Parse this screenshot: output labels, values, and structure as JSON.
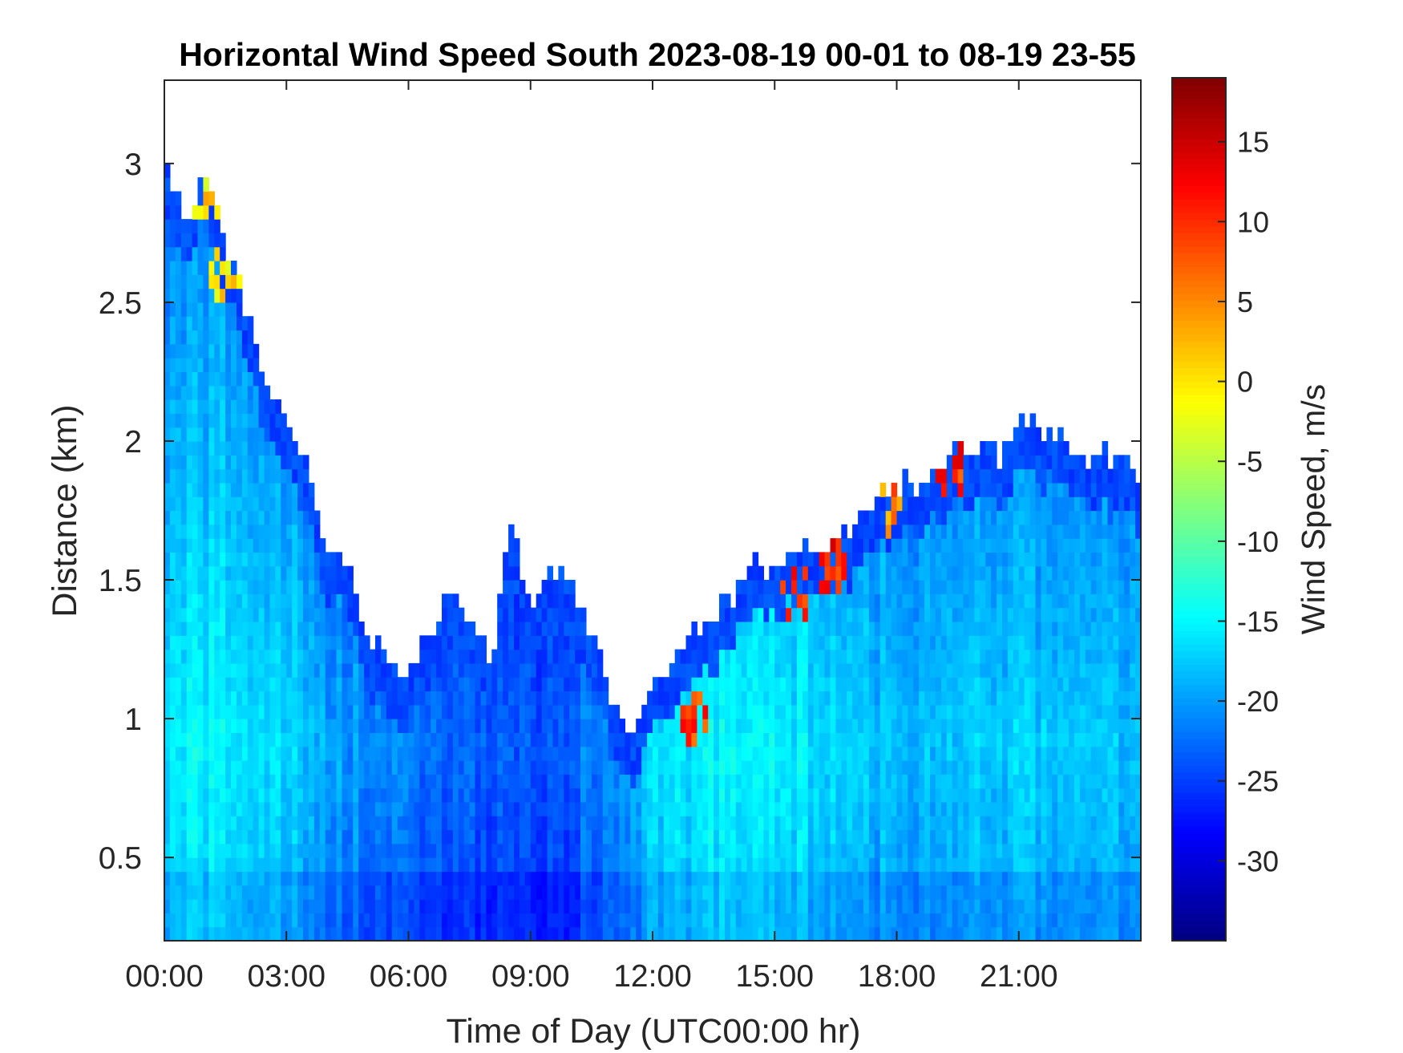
{
  "chart_data": {
    "type": "heatmap",
    "title": "Horizontal Wind Speed South 2023-08-19 00-01 to 08-19 23-55",
    "xlabel": "Time of Day (UTC00:00 hr)",
    "ylabel": "Distance (km)",
    "colorbar_label": "Wind Speed, m/s",
    "colormap": "jet",
    "xlim_hours": [
      0,
      24
    ],
    "ylim_km": [
      0.2,
      3.3
    ],
    "clim": [
      -35,
      19
    ],
    "x_ticks": [
      {
        "value": 0,
        "label": "00:00"
      },
      {
        "value": 3,
        "label": "03:00"
      },
      {
        "value": 6,
        "label": "06:00"
      },
      {
        "value": 9,
        "label": "09:00"
      },
      {
        "value": 12,
        "label": "12:00"
      },
      {
        "value": 15,
        "label": "15:00"
      },
      {
        "value": 18,
        "label": "18:00"
      },
      {
        "value": 21,
        "label": "21:00"
      }
    ],
    "y_ticks": [
      {
        "value": 0.5,
        "label": "0.5"
      },
      {
        "value": 1,
        "label": "1"
      },
      {
        "value": 1.5,
        "label": "1.5"
      },
      {
        "value": 2,
        "label": "2"
      },
      {
        "value": 2.5,
        "label": "2.5"
      },
      {
        "value": 3,
        "label": "3"
      }
    ],
    "colorbar_ticks": [
      {
        "value": -30,
        "label": "-30"
      },
      {
        "value": -25,
        "label": "-25"
      },
      {
        "value": -20,
        "label": "-20"
      },
      {
        "value": -15,
        "label": "-15"
      },
      {
        "value": -10,
        "label": "-10"
      },
      {
        "value": -5,
        "label": "-5"
      },
      {
        "value": 0,
        "label": "0"
      },
      {
        "value": 5,
        "label": "5"
      },
      {
        "value": 10,
        "label": "10"
      },
      {
        "value": 15,
        "label": "15"
      }
    ],
    "data_top_km": {
      "hours": [
        0,
        0.5,
        1,
        1.5,
        2,
        2.5,
        3,
        3.5,
        4,
        4.5,
        5,
        5.5,
        6,
        6.5,
        7,
        7.5,
        8,
        8.5,
        9,
        9.5,
        10,
        10.5,
        11,
        11.5,
        12,
        12.5,
        13,
        13.5,
        14,
        14.5,
        15,
        15.5,
        16,
        16.5,
        17,
        17.5,
        18,
        18.5,
        19,
        19.5,
        20,
        20.5,
        21,
        21.5,
        22,
        22.5,
        23,
        23.5,
        24
      ],
      "top": [
        3.0,
        2.8,
        3.0,
        2.7,
        2.5,
        2.2,
        2.05,
        1.9,
        1.6,
        1.55,
        1.3,
        1.2,
        1.15,
        1.3,
        1.45,
        1.35,
        1.2,
        1.7,
        1.4,
        1.55,
        1.5,
        1.3,
        1.05,
        0.95,
        1.15,
        1.2,
        1.3,
        1.35,
        1.45,
        1.55,
        1.55,
        1.6,
        1.6,
        1.65,
        1.7,
        1.8,
        1.85,
        1.85,
        1.9,
        1.95,
        2.0,
        1.95,
        2.05,
        2.05,
        2.0,
        1.95,
        1.95,
        1.9,
        1.85
      ]
    },
    "core_speed_ms": {
      "hours": [
        0,
        1.5,
        3,
        4.5,
        6,
        7.5,
        9,
        10.5,
        12,
        13.5,
        15,
        16.5,
        18,
        19.5,
        21,
        22.5,
        24
      ],
      "speed": [
        -16,
        -15,
        -17,
        -20,
        -22,
        -23,
        -24,
        -22,
        -17,
        -15,
        -15,
        -17,
        -18,
        -18,
        -17,
        -18,
        -18
      ]
    },
    "hotspots": [
      {
        "hour": 0.6,
        "km": 2.9,
        "speed": 2
      },
      {
        "hour": 1.1,
        "km": 2.9,
        "speed": 4
      },
      {
        "hour": 1.5,
        "km": 2.6,
        "speed": 3
      },
      {
        "hour": 15.5,
        "km": 1.45,
        "speed": 14
      },
      {
        "hour": 16.4,
        "km": 1.55,
        "speed": 15
      },
      {
        "hour": 17.8,
        "km": 1.75,
        "speed": 10
      },
      {
        "hour": 19.3,
        "km": 1.9,
        "speed": 14
      },
      {
        "hour": 13.0,
        "km": 1.0,
        "speed": 13
      }
    ]
  }
}
